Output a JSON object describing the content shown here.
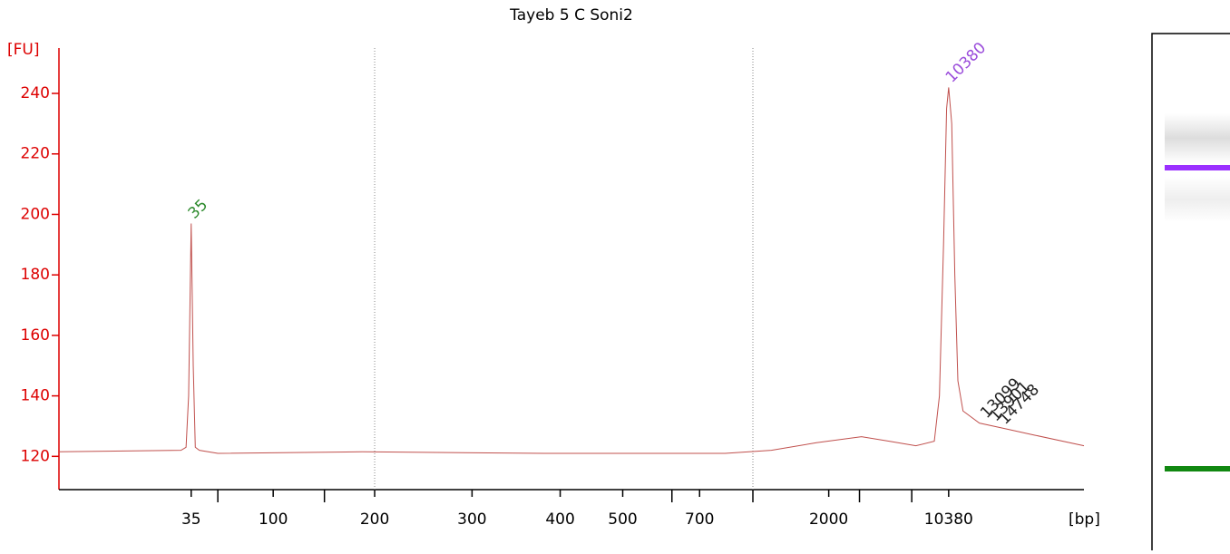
{
  "chart_data": {
    "type": "line",
    "title": "Tayeb 5 C Soni2",
    "ylabel": "[FU]",
    "xlabel": "[bp]",
    "ylim": [
      109,
      255
    ],
    "yticks": [
      120,
      140,
      160,
      180,
      200,
      220,
      240
    ],
    "xlim": [
      20,
      120
    ],
    "xticks": [
      {
        "value": 32.9,
        "label": "35"
      },
      {
        "value": 40.9,
        "label": "100"
      },
      {
        "value": 50.8,
        "label": "200"
      },
      {
        "value": 60.3,
        "label": "300"
      },
      {
        "value": 68.9,
        "label": "400"
      },
      {
        "value": 75.0,
        "label": "500"
      },
      {
        "value": 82.5,
        "label": "700"
      },
      {
        "value": 95.1,
        "label": "2000"
      },
      {
        "value": 106.8,
        "label": "10380"
      }
    ],
    "xminorticks": [
      35.5,
      45.9,
      79.8,
      87.7,
      98.1,
      103.2
    ],
    "vlines": [
      50.8,
      87.7
    ],
    "series": [
      {
        "color": "#c0504d",
        "x": [
          20,
          31.9,
          32.4,
          32.65,
          32.9,
          33.1,
          33.3,
          33.7,
          35.5,
          49.6,
          67.3,
          85,
          89.5,
          93.9,
          98.3,
          101,
          103.6,
          105.4,
          105.9,
          106.3,
          106.6,
          106.8,
          107.1,
          107.4,
          107.7,
          108.2,
          109.8,
          112.5,
          115.2,
          120
        ],
        "values": [
          121.5,
          122,
          123,
          140,
          197,
          150,
          123,
          122,
          121,
          121.5,
          121,
          121,
          122,
          124.5,
          126.5,
          125,
          123.5,
          125,
          140,
          190,
          235,
          242,
          230,
          180,
          145,
          135,
          131,
          129,
          127,
          123.5
        ]
      }
    ],
    "peak_labels": [
      {
        "label": "35",
        "x": 32.9,
        "y": 197,
        "color": "#2e8b2e"
      },
      {
        "label": "10380",
        "x": 106.8,
        "y": 242,
        "color": "#9b4ddb"
      },
      {
        "label": "13099",
        "x": 110.2,
        "y": 131,
        "color": "#222222"
      },
      {
        "label": "13901",
        "x": 111.1,
        "y": 130,
        "color": "#222222"
      },
      {
        "label": "14748",
        "x": 112.0,
        "y": 129,
        "color": "#222222"
      }
    ]
  }
}
